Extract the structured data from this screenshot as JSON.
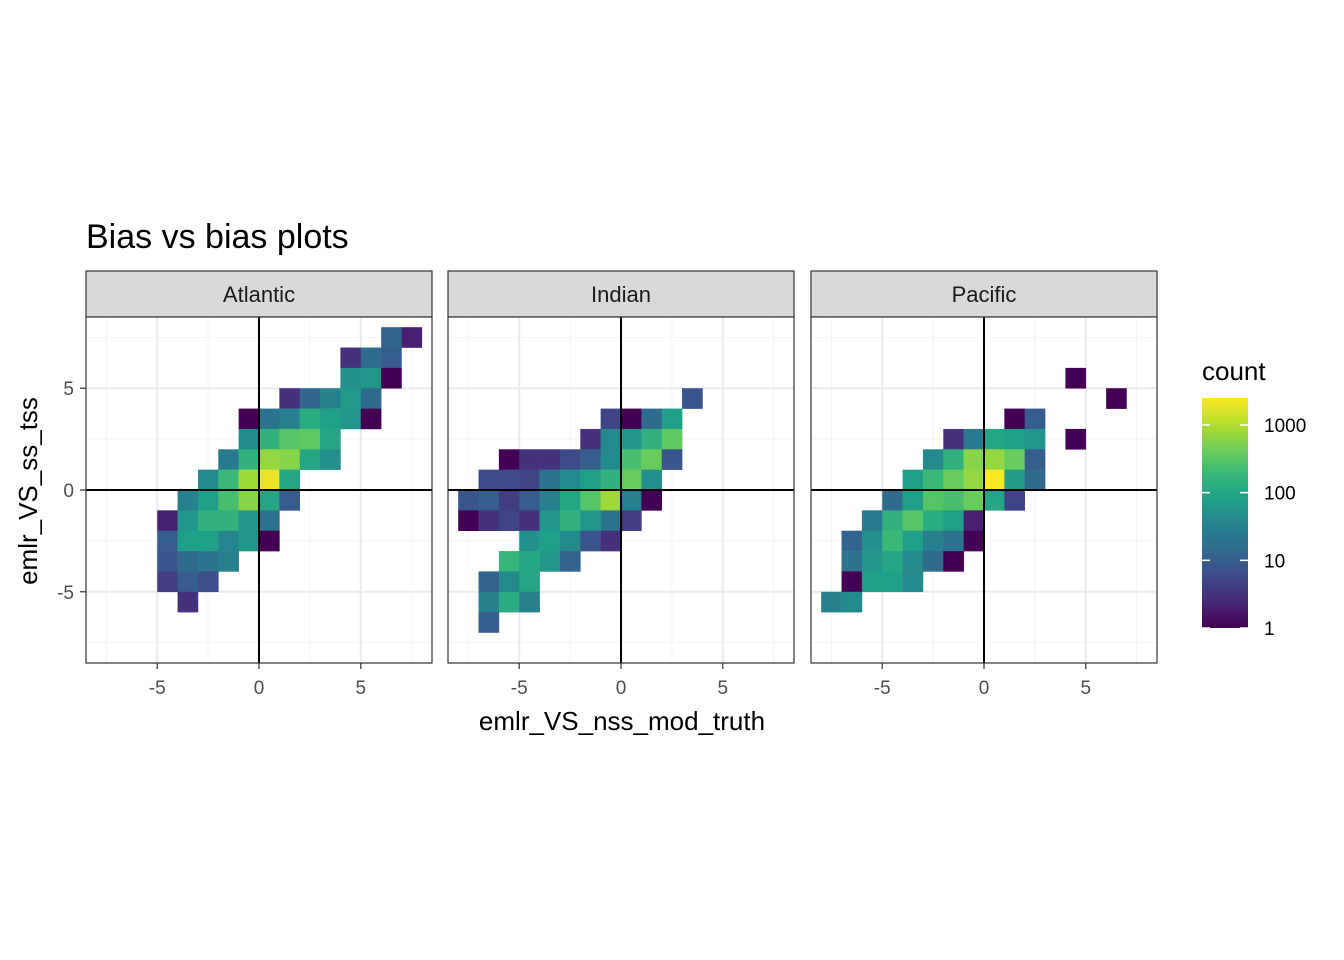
{
  "chart_data": {
    "type": "heatmap",
    "title": "Bias vs bias plots",
    "xlabel": "emlr_VS_nss_mod_truth",
    "ylabel": "emlr_VS_ss_tss",
    "xlim": [
      -8.5,
      8.5
    ],
    "ylim": [
      -8.5,
      8.5
    ],
    "x_ticks": [
      -5,
      0,
      5
    ],
    "y_ticks": [
      -5,
      0,
      5
    ],
    "bin_width": 1,
    "grid": true,
    "reference_lines": {
      "x": 0,
      "y": 0
    },
    "legend": {
      "title": "count",
      "scale": "log10",
      "range": [
        1,
        2500
      ],
      "breaks": [
        1,
        10,
        100,
        1000
      ],
      "break_labels": [
        "1",
        "10",
        "100",
        "1000"
      ],
      "position": "right",
      "colormap": "viridis"
    },
    "colors": [
      "#440154",
      "#482878",
      "#3e4989",
      "#31688e",
      "#26828e",
      "#1f9e89",
      "#35b779",
      "#6ece58",
      "#b5de2b",
      "#fde725"
    ],
    "panels": [
      {
        "name": "Atlantic",
        "bins": [
          [
            7.5,
            7.5,
            2
          ],
          [
            6.5,
            7.5,
            12
          ],
          [
            4.5,
            6.5,
            3
          ],
          [
            5.5,
            6.5,
            15
          ],
          [
            6.5,
            6.5,
            10
          ],
          [
            4.5,
            5.5,
            50
          ],
          [
            5.5,
            5.5,
            60
          ],
          [
            6.5,
            5.5,
            1
          ],
          [
            1.5,
            4.5,
            3
          ],
          [
            2.5,
            4.5,
            12
          ],
          [
            3.5,
            4.5,
            30
          ],
          [
            4.5,
            4.5,
            70
          ],
          [
            5.5,
            4.5,
            15
          ],
          [
            -0.5,
            3.5,
            1
          ],
          [
            0.5,
            3.5,
            20
          ],
          [
            1.5,
            3.5,
            30
          ],
          [
            2.5,
            3.5,
            120
          ],
          [
            3.5,
            3.5,
            80
          ],
          [
            4.5,
            3.5,
            60
          ],
          [
            5.5,
            3.5,
            1
          ],
          [
            -0.5,
            2.5,
            40
          ],
          [
            0.5,
            2.5,
            150
          ],
          [
            1.5,
            2.5,
            300
          ],
          [
            2.5,
            2.5,
            350
          ],
          [
            3.5,
            2.5,
            100
          ],
          [
            -1.5,
            1.5,
            25
          ],
          [
            -0.5,
            1.5,
            150
          ],
          [
            0.5,
            1.5,
            700
          ],
          [
            1.5,
            1.5,
            600
          ],
          [
            2.5,
            1.5,
            100
          ],
          [
            3.5,
            1.5,
            50
          ],
          [
            -2.5,
            0.5,
            40
          ],
          [
            -1.5,
            0.5,
            200
          ],
          [
            -0.5,
            0.5,
            800
          ],
          [
            0.5,
            0.5,
            2000
          ],
          [
            1.5,
            0.5,
            100
          ],
          [
            -3.5,
            -0.5,
            30
          ],
          [
            -2.5,
            -0.5,
            80
          ],
          [
            -1.5,
            -0.5,
            250
          ],
          [
            -0.5,
            -0.5,
            600
          ],
          [
            0.5,
            -0.5,
            100
          ],
          [
            1.5,
            -0.5,
            10
          ],
          [
            -4.5,
            -1.5,
            2
          ],
          [
            -3.5,
            -1.5,
            60
          ],
          [
            -2.5,
            -1.5,
            150
          ],
          [
            -1.5,
            -1.5,
            150
          ],
          [
            -0.5,
            -1.5,
            60
          ],
          [
            0.5,
            -1.5,
            20
          ],
          [
            -4.5,
            -2.5,
            10
          ],
          [
            -3.5,
            -2.5,
            80
          ],
          [
            -2.5,
            -2.5,
            80
          ],
          [
            -1.5,
            -2.5,
            35
          ],
          [
            -0.5,
            -2.5,
            60
          ],
          [
            0.5,
            -2.5,
            1
          ],
          [
            -4.5,
            -3.5,
            8
          ],
          [
            -3.5,
            -3.5,
            15
          ],
          [
            -2.5,
            -3.5,
            20
          ],
          [
            -1.5,
            -3.5,
            30
          ],
          [
            -4.5,
            -4.5,
            4
          ],
          [
            -3.5,
            -4.5,
            10
          ],
          [
            -2.5,
            -4.5,
            7
          ],
          [
            -3.5,
            -5.5,
            3
          ]
        ]
      },
      {
        "name": "Indian",
        "bins": [
          [
            3.5,
            4.5,
            8
          ],
          [
            -0.5,
            3.5,
            5
          ],
          [
            0.5,
            3.5,
            1
          ],
          [
            1.5,
            3.5,
            15
          ],
          [
            2.5,
            3.5,
            80
          ],
          [
            -1.5,
            2.5,
            3
          ],
          [
            -0.5,
            2.5,
            40
          ],
          [
            0.5,
            2.5,
            60
          ],
          [
            1.5,
            2.5,
            150
          ],
          [
            2.5,
            2.5,
            350
          ],
          [
            -5.5,
            1.5,
            1
          ],
          [
            -4.5,
            1.5,
            3
          ],
          [
            -3.5,
            1.5,
            3
          ],
          [
            -2.5,
            1.5,
            6
          ],
          [
            -1.5,
            1.5,
            10
          ],
          [
            -0.5,
            1.5,
            40
          ],
          [
            0.5,
            1.5,
            250
          ],
          [
            1.5,
            1.5,
            400
          ],
          [
            2.5,
            1.5,
            8
          ],
          [
            -6.5,
            0.5,
            6
          ],
          [
            -5.5,
            0.5,
            6
          ],
          [
            -4.5,
            0.5,
            5
          ],
          [
            -3.5,
            0.5,
            20
          ],
          [
            -2.5,
            0.5,
            40
          ],
          [
            -1.5,
            0.5,
            80
          ],
          [
            -0.5,
            0.5,
            150
          ],
          [
            0.5,
            0.5,
            400
          ],
          [
            1.5,
            0.5,
            50
          ],
          [
            -7.5,
            -0.5,
            8
          ],
          [
            -6.5,
            -0.5,
            10
          ],
          [
            -5.5,
            -0.5,
            4
          ],
          [
            -4.5,
            -0.5,
            10
          ],
          [
            -3.5,
            -0.5,
            30
          ],
          [
            -2.5,
            -0.5,
            100
          ],
          [
            -1.5,
            -0.5,
            300
          ],
          [
            -0.5,
            -0.5,
            800
          ],
          [
            0.5,
            -0.5,
            30
          ],
          [
            1.5,
            -0.5,
            1
          ],
          [
            -7.5,
            -1.5,
            1
          ],
          [
            -6.5,
            -1.5,
            3
          ],
          [
            -5.5,
            -1.5,
            5
          ],
          [
            -4.5,
            -1.5,
            3
          ],
          [
            -3.5,
            -1.5,
            60
          ],
          [
            -2.5,
            -1.5,
            150
          ],
          [
            -1.5,
            -1.5,
            60
          ],
          [
            -0.5,
            -1.5,
            20
          ],
          [
            0.5,
            -1.5,
            4
          ],
          [
            -4.5,
            -2.5,
            50
          ],
          [
            -3.5,
            -2.5,
            80
          ],
          [
            -2.5,
            -2.5,
            40
          ],
          [
            -1.5,
            -2.5,
            8
          ],
          [
            -0.5,
            -2.5,
            3
          ],
          [
            -5.5,
            -3.5,
            180
          ],
          [
            -4.5,
            -3.5,
            100
          ],
          [
            -3.5,
            -3.5,
            60
          ],
          [
            -2.5,
            -3.5,
            12
          ],
          [
            -6.5,
            -4.5,
            12
          ],
          [
            -5.5,
            -4.5,
            40
          ],
          [
            -4.5,
            -4.5,
            100
          ],
          [
            -6.5,
            -5.5,
            30
          ],
          [
            -5.5,
            -5.5,
            120
          ],
          [
            -4.5,
            -5.5,
            30
          ],
          [
            -6.5,
            -6.5,
            10
          ]
        ]
      },
      {
        "name": "Pacific",
        "bins": [
          [
            4.5,
            5.5,
            1
          ],
          [
            6.5,
            4.5,
            1
          ],
          [
            1.5,
            3.5,
            1
          ],
          [
            2.5,
            3.5,
            10
          ],
          [
            -1.5,
            2.5,
            3
          ],
          [
            -0.5,
            2.5,
            25
          ],
          [
            0.5,
            2.5,
            100
          ],
          [
            1.5,
            2.5,
            80
          ],
          [
            2.5,
            2.5,
            60
          ],
          [
            4.5,
            2.5,
            1
          ],
          [
            -2.5,
            1.5,
            40
          ],
          [
            -1.5,
            1.5,
            150
          ],
          [
            -0.5,
            1.5,
            600
          ],
          [
            0.5,
            1.5,
            700
          ],
          [
            1.5,
            1.5,
            400
          ],
          [
            2.5,
            1.5,
            10
          ],
          [
            -3.5,
            0.5,
            80
          ],
          [
            -2.5,
            0.5,
            200
          ],
          [
            -1.5,
            0.5,
            400
          ],
          [
            -0.5,
            0.5,
            700
          ],
          [
            0.5,
            0.5,
            2500
          ],
          [
            1.5,
            0.5,
            70
          ],
          [
            2.5,
            0.5,
            15
          ],
          [
            -4.5,
            -0.5,
            15
          ],
          [
            -3.5,
            -0.5,
            80
          ],
          [
            -2.5,
            -0.5,
            300
          ],
          [
            -1.5,
            -0.5,
            250
          ],
          [
            -0.5,
            -0.5,
            400
          ],
          [
            0.5,
            -0.5,
            100
          ],
          [
            1.5,
            -0.5,
            5
          ],
          [
            -5.5,
            -1.5,
            25
          ],
          [
            -4.5,
            -1.5,
            150
          ],
          [
            -3.5,
            -1.5,
            300
          ],
          [
            -2.5,
            -1.5,
            120
          ],
          [
            -1.5,
            -1.5,
            80
          ],
          [
            -0.5,
            -1.5,
            2
          ],
          [
            -6.5,
            -2.5,
            12
          ],
          [
            -5.5,
            -2.5,
            50
          ],
          [
            -4.5,
            -2.5,
            200
          ],
          [
            -3.5,
            -2.5,
            80
          ],
          [
            -2.5,
            -2.5,
            30
          ],
          [
            -1.5,
            -2.5,
            20
          ],
          [
            -0.5,
            -2.5,
            1
          ],
          [
            -6.5,
            -3.5,
            20
          ],
          [
            -5.5,
            -3.5,
            60
          ],
          [
            -4.5,
            -3.5,
            100
          ],
          [
            -3.5,
            -3.5,
            40
          ],
          [
            -2.5,
            -3.5,
            15
          ],
          [
            -1.5,
            -3.5,
            1
          ],
          [
            -6.5,
            -4.5,
            1
          ],
          [
            -5.5,
            -4.5,
            80
          ],
          [
            -4.5,
            -4.5,
            80
          ],
          [
            -3.5,
            -4.5,
            40
          ],
          [
            -7.5,
            -5.5,
            30
          ],
          [
            -6.5,
            -5.5,
            40
          ]
        ]
      }
    ]
  }
}
